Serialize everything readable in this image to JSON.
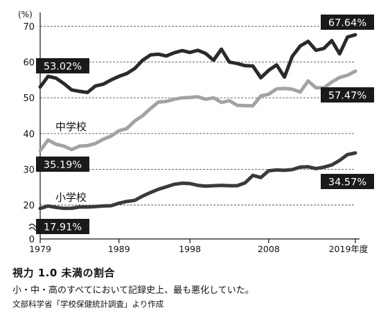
{
  "caption": {
    "title": "視力 1.0 未満の割合",
    "subtitle": "小・中・高のすべてにおいて記録史上、最も悪化していた。",
    "source": "文部科学省「学校保健統計調査」より作成"
  },
  "chart_data": {
    "type": "line",
    "yunit": "(%)",
    "ylim": [
      0,
      70
    ],
    "yticks": [
      0,
      20,
      30,
      40,
      50,
      60,
      70
    ],
    "axis_break": true,
    "grid": "dashed-horizontal",
    "xticks": [
      {
        "year": 1979,
        "label": "1979"
      },
      {
        "year": 1989,
        "label": "1989"
      },
      {
        "year": 1998,
        "label": "1998"
      },
      {
        "year": 2008,
        "label": "2008"
      },
      {
        "year": 2019,
        "label": "2019年度"
      }
    ],
    "colors": {
      "high": "#2a2a2a",
      "middle": "#a3a3a3",
      "elementary": "#3a3a3a",
      "label_bg": "#1a1a1a"
    },
    "series": [
      {
        "key": "high",
        "name": "",
        "x": [
          1979,
          1980,
          1981,
          1982,
          1983,
          1984,
          1985,
          1986,
          1987,
          1988,
          1989,
          1990,
          1991,
          1992,
          1993,
          1994,
          1995,
          1996,
          1997,
          1998,
          1999,
          2000,
          2001,
          2002,
          2003,
          2004,
          2005,
          2006,
          2007,
          2008,
          2009,
          2010,
          2011,
          2012,
          2013,
          2014,
          2015,
          2016,
          2017,
          2018,
          2019
        ],
        "y": [
          53.02,
          56.0,
          55.5,
          54.0,
          52.2,
          51.8,
          51.5,
          53.3,
          53.8,
          55.0,
          56.0,
          56.8,
          58.2,
          60.5,
          62.0,
          62.2,
          61.7,
          62.6,
          63.2,
          62.7,
          63.3,
          62.4,
          60.5,
          63.6,
          60.0,
          59.6,
          59.0,
          58.9,
          55.6,
          57.7,
          59.2,
          55.8,
          61.6,
          64.5,
          65.8,
          63.3,
          63.8,
          66.0,
          62.3,
          67.0,
          67.64
        ],
        "start_label": "53.02%",
        "end_label": "67.64%"
      },
      {
        "key": "middle",
        "name": "中学校",
        "x": [
          1979,
          1980,
          1981,
          1982,
          1983,
          1984,
          1985,
          1986,
          1987,
          1988,
          1989,
          1990,
          1991,
          1992,
          1993,
          1994,
          1995,
          1996,
          1997,
          1998,
          1999,
          2000,
          2001,
          2002,
          2003,
          2004,
          2005,
          2006,
          2007,
          2008,
          2009,
          2010,
          2011,
          2012,
          2013,
          2014,
          2015,
          2016,
          2017,
          2018,
          2019
        ],
        "y": [
          35.19,
          38.2,
          37.0,
          36.5,
          35.5,
          36.5,
          36.6,
          37.2,
          38.4,
          39.3,
          40.8,
          41.4,
          43.5,
          45.0,
          47.0,
          48.8,
          49.0,
          49.6,
          50.0,
          50.1,
          50.3,
          49.6,
          50.0,
          48.7,
          49.2,
          47.9,
          47.8,
          47.8,
          50.5,
          51.0,
          52.5,
          52.6,
          52.4,
          51.6,
          54.7,
          52.8,
          52.8,
          54.4,
          55.7,
          56.3,
          57.47
        ],
        "start_label": "35.19%",
        "end_label": "57.47%"
      },
      {
        "key": "elementary",
        "name": "小学校",
        "x": [
          1979,
          1980,
          1981,
          1982,
          1983,
          1984,
          1985,
          1986,
          1987,
          1988,
          1989,
          1990,
          1991,
          1992,
          1993,
          1994,
          1995,
          1996,
          1997,
          1998,
          1999,
          2000,
          2001,
          2002,
          2003,
          2004,
          2005,
          2006,
          2007,
          2008,
          2009,
          2010,
          2011,
          2012,
          2013,
          2014,
          2015,
          2016,
          2017,
          2018,
          2019
        ],
        "y": [
          17.91,
          19.4,
          18.6,
          18.0,
          18.1,
          18.8,
          18.8,
          19.1,
          19.4,
          19.6,
          20.5,
          21.0,
          21.3,
          22.5,
          23.5,
          24.4,
          25.1,
          25.8,
          26.1,
          26.0,
          25.5,
          25.3,
          25.4,
          25.5,
          25.4,
          25.4,
          26.2,
          28.3,
          27.7,
          29.6,
          29.8,
          29.7,
          29.9,
          30.6,
          30.7,
          30.2,
          30.6,
          31.2,
          32.5,
          34.1,
          34.57
        ],
        "start_label": "17.91%",
        "end_label": "34.57%"
      }
    ]
  }
}
